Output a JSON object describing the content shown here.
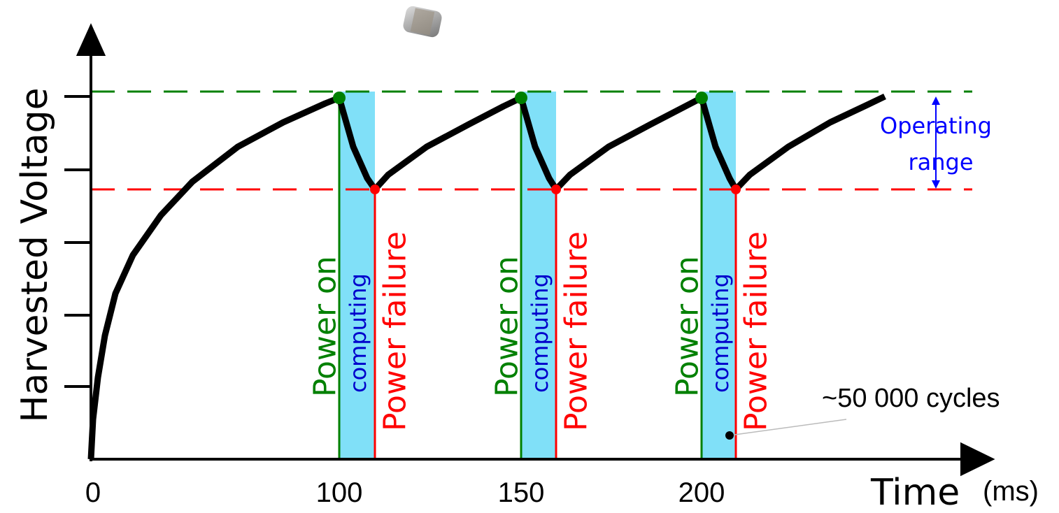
{
  "axes": {
    "y_label": "Harvested Voltage",
    "x_label": "Time",
    "x_unit": "(ms)",
    "x_ticks": [
      "0",
      "100",
      "150",
      "200"
    ]
  },
  "cycles": [
    {
      "power_on": "Power on",
      "computing": "computing",
      "power_failure": "Power failure"
    },
    {
      "power_on": "Power on",
      "computing": "computing",
      "power_failure": "Power failure"
    },
    {
      "power_on": "Power on",
      "computing": "computing",
      "power_failure": "Power failure"
    }
  ],
  "operating_range": [
    "Operating",
    "range"
  ],
  "annotation": "~50 000 cycles"
}
